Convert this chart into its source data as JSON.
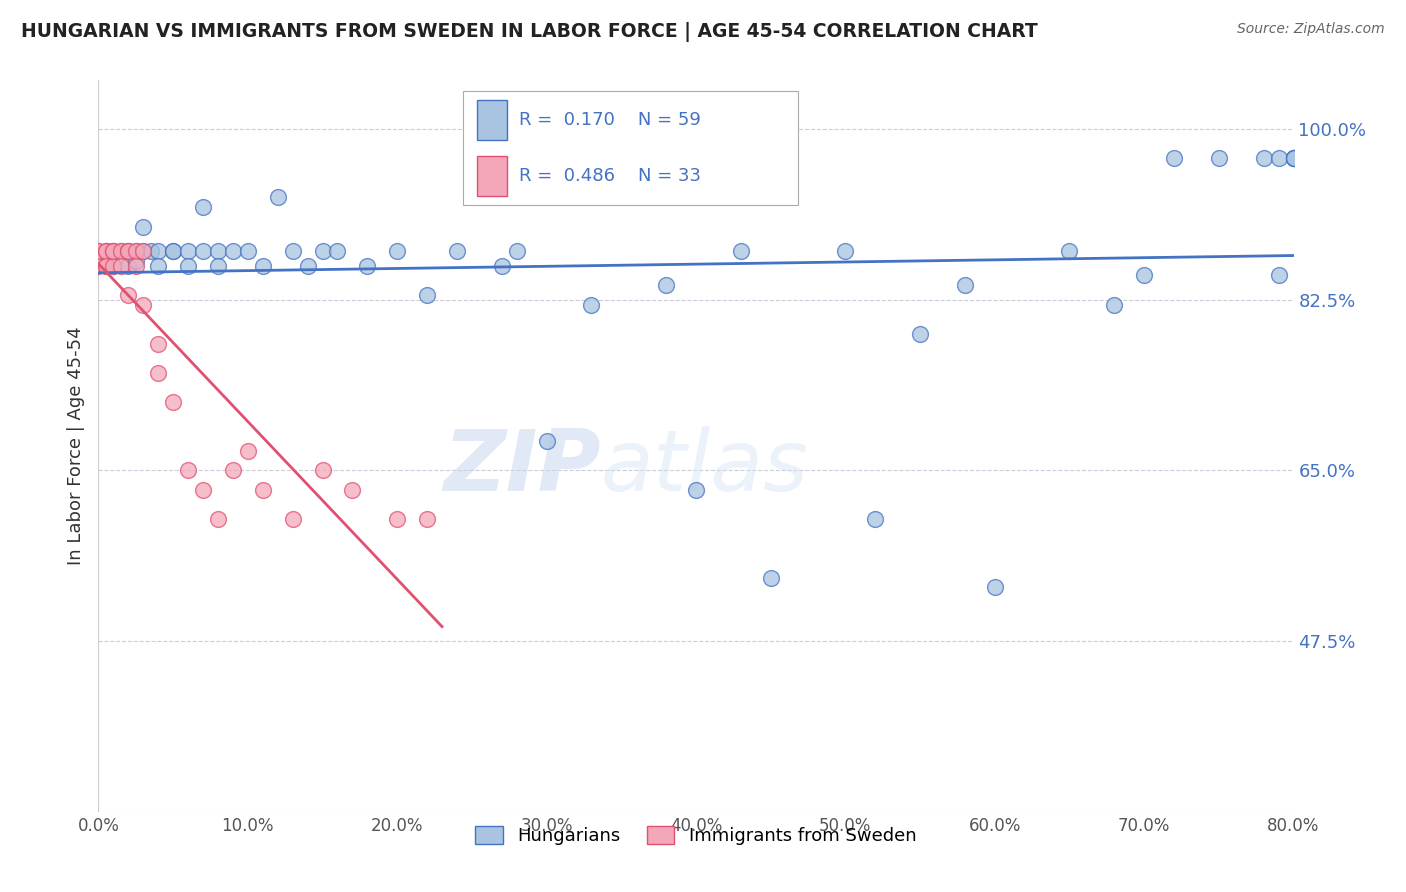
{
  "title": "HUNGARIAN VS IMMIGRANTS FROM SWEDEN IN LABOR FORCE | AGE 45-54 CORRELATION CHART",
  "source": "Source: ZipAtlas.com",
  "xlabel": "",
  "ylabel": "In Labor Force | Age 45-54",
  "xlim": [
    0.0,
    0.8
  ],
  "ylim": [
    0.3,
    1.05
  ],
  "yticks": [
    0.475,
    0.65,
    0.825,
    1.0
  ],
  "ytick_labels": [
    "47.5%",
    "65.0%",
    "82.5%",
    "100.0%"
  ],
  "xticks": [
    0.0,
    0.1,
    0.2,
    0.3,
    0.4,
    0.5,
    0.6,
    0.7,
    0.8
  ],
  "xtick_labels": [
    "0.0%",
    "10.0%",
    "20.0%",
    "30.0%",
    "40.0%",
    "50.0%",
    "60.0%",
    "70.0%",
    "80.0%"
  ],
  "r_hungarian": 0.17,
  "n_hungarian": 59,
  "r_sweden": 0.486,
  "n_sweden": 33,
  "color_hungarian": "#a8c4e0",
  "color_sweden": "#f4a7b9",
  "color_line_hungarian": "#4472c4",
  "color_line_sweden": "#e05070",
  "legend_label_hungarian": "Hungarians",
  "legend_label_sweden": "Immigrants from Sweden",
  "watermark_zip": "ZIP",
  "watermark_atlas": "atlas",
  "blue_scatter_x": [
    0.005,
    0.01,
    0.01,
    0.015,
    0.02,
    0.02,
    0.025,
    0.025,
    0.03,
    0.03,
    0.035,
    0.04,
    0.04,
    0.05,
    0.05,
    0.06,
    0.06,
    0.07,
    0.07,
    0.08,
    0.08,
    0.09,
    0.1,
    0.11,
    0.12,
    0.13,
    0.14,
    0.15,
    0.16,
    0.18,
    0.2,
    0.22,
    0.24,
    0.27,
    0.28,
    0.3,
    0.33,
    0.38,
    0.4,
    0.43,
    0.45,
    0.5,
    0.52,
    0.55,
    0.58,
    0.6,
    0.65,
    0.68,
    0.7,
    0.72,
    0.75,
    0.78,
    0.79,
    0.79,
    0.8,
    0.8,
    0.8,
    0.8,
    0.8
  ],
  "blue_scatter_y": [
    0.875,
    0.875,
    0.86,
    0.875,
    0.875,
    0.86,
    0.875,
    0.865,
    0.9,
    0.875,
    0.875,
    0.875,
    0.86,
    0.875,
    0.875,
    0.875,
    0.86,
    0.92,
    0.875,
    0.875,
    0.86,
    0.875,
    0.875,
    0.86,
    0.93,
    0.875,
    0.86,
    0.875,
    0.875,
    0.86,
    0.875,
    0.83,
    0.875,
    0.86,
    0.875,
    0.68,
    0.82,
    0.84,
    0.63,
    0.875,
    0.54,
    0.875,
    0.6,
    0.79,
    0.84,
    0.53,
    0.875,
    0.82,
    0.85,
    0.97,
    0.97,
    0.97,
    0.85,
    0.97,
    0.97,
    0.97,
    0.97,
    0.97,
    0.97
  ],
  "pink_scatter_x": [
    0.0,
    0.0,
    0.0,
    0.005,
    0.005,
    0.005,
    0.005,
    0.01,
    0.01,
    0.01,
    0.015,
    0.015,
    0.02,
    0.02,
    0.02,
    0.025,
    0.025,
    0.03,
    0.03,
    0.04,
    0.04,
    0.05,
    0.06,
    0.07,
    0.08,
    0.09,
    0.1,
    0.11,
    0.13,
    0.15,
    0.17,
    0.2,
    0.22
  ],
  "pink_scatter_y": [
    0.875,
    0.86,
    0.875,
    0.875,
    0.86,
    0.875,
    0.86,
    0.875,
    0.86,
    0.875,
    0.875,
    0.86,
    0.875,
    0.875,
    0.83,
    0.875,
    0.86,
    0.875,
    0.82,
    0.78,
    0.75,
    0.72,
    0.65,
    0.63,
    0.6,
    0.65,
    0.67,
    0.63,
    0.6,
    0.65,
    0.63,
    0.6,
    0.6
  ]
}
